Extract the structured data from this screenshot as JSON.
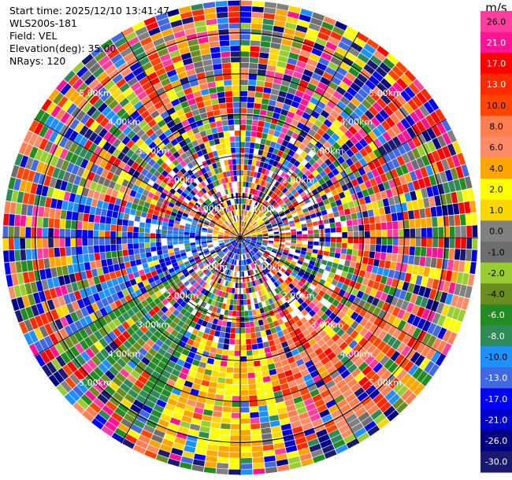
{
  "header": {
    "start_time": "Start time: 2025/12/10 13:41:47",
    "instrument": "WLS200s-181",
    "field": "Field: VEL",
    "elevation": "Elevation(deg): 35.00",
    "nrays": "NRays: 120"
  },
  "chart_data": {
    "type": "heatmap",
    "projection": "polar-ppi",
    "field": "VEL",
    "nrays": 120,
    "elevation_deg": 35.0,
    "max_range_km": 5.8,
    "range_ring_labels": [
      "1.00km",
      "2.00km",
      "3.00km",
      "4.00km",
      "5.00km"
    ],
    "colorbar": {
      "unit": "m/s",
      "ticks": [
        "26.0",
        "21.0",
        "17.0",
        "13.0",
        "10.0",
        "8.0",
        "6.0",
        "4.0",
        "2.0",
        "1.0",
        "0.0",
        "-1.0",
        "-2.0",
        "-4.0",
        "-6.0",
        "-8.0",
        "-10.0",
        "-13.0",
        "-17.0",
        "-21.0",
        "-26.0",
        "-30.0"
      ],
      "colors": [
        "#ff3fa0",
        "#ff1493",
        "#ff0000",
        "#ff2a00",
        "#ff4500",
        "#ff7f50",
        "#ff8c69",
        "#ffa500",
        "#ffff00",
        "#ffd700",
        "#808080",
        "#6e6e6e",
        "#9acd32",
        "#6b8e23",
        "#228b22",
        "#2e8b57",
        "#1e90ff",
        "#4169e1",
        "#0000ff",
        "#0000cd",
        "#000080",
        "#191970"
      ]
    }
  }
}
